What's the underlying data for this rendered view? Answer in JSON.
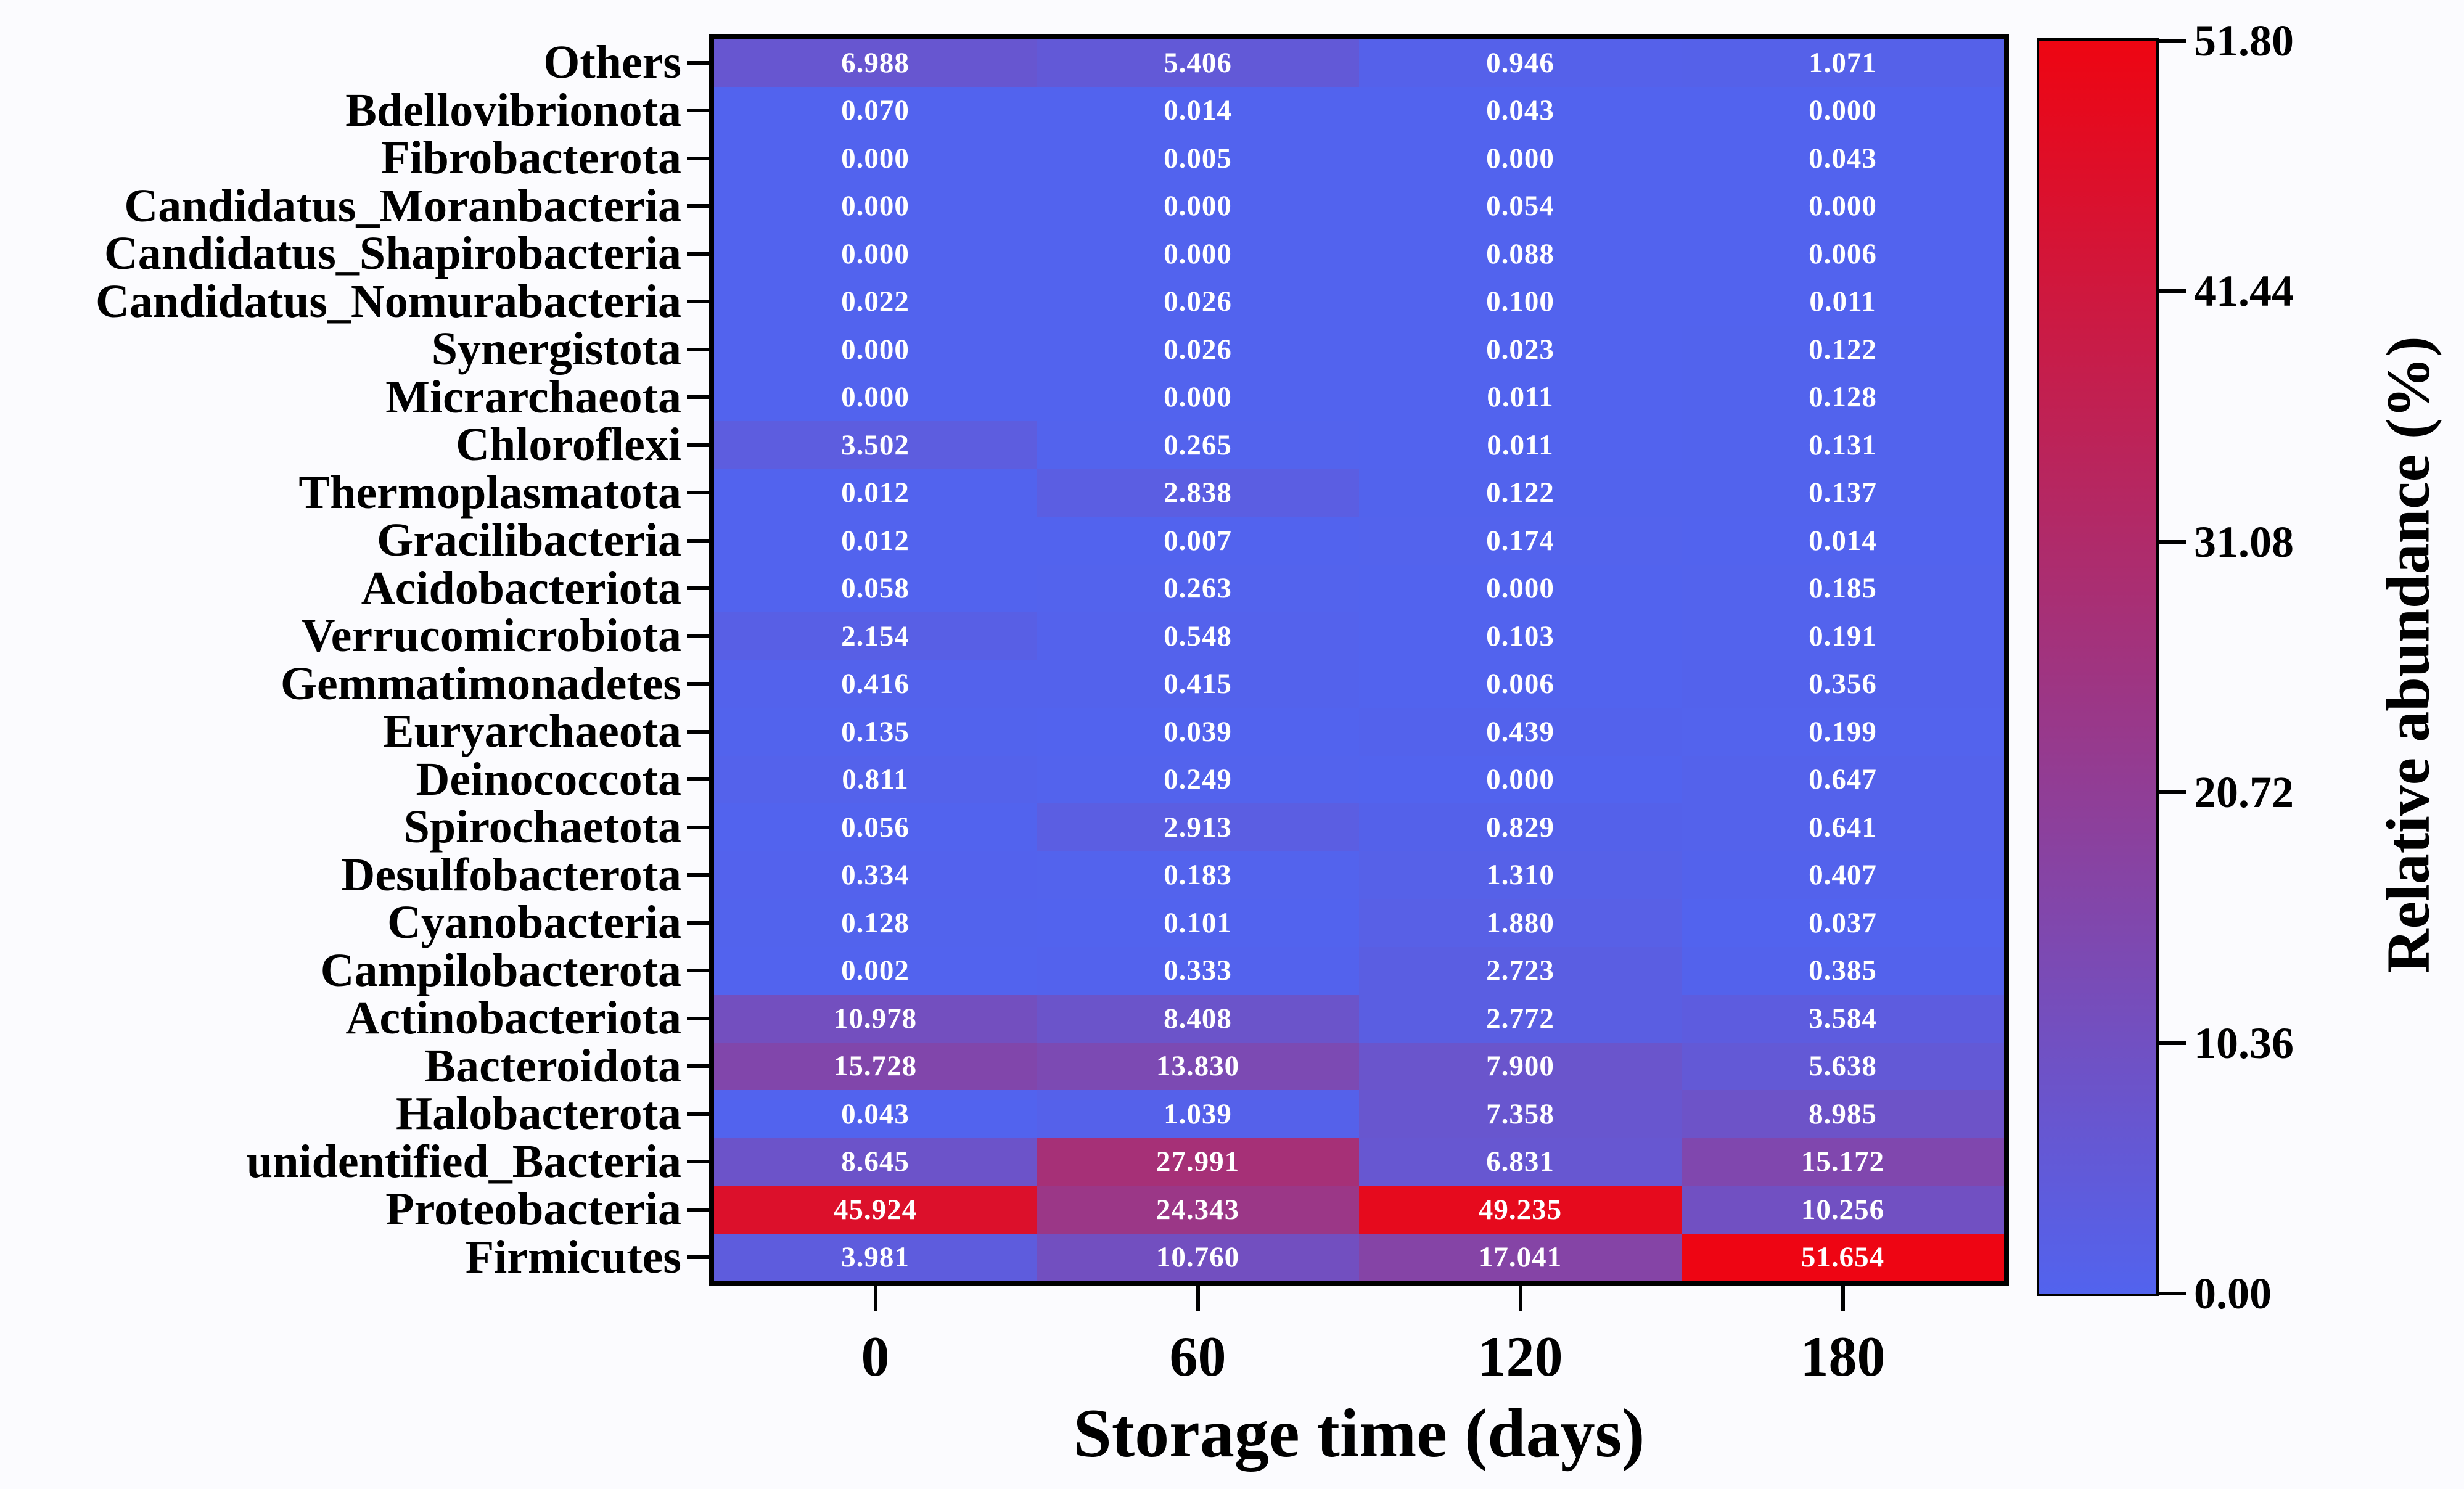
{
  "chart_data": {
    "type": "heatmap",
    "title": "",
    "xlabel": "Storage time (days)",
    "ylabel": "",
    "colorbar_label": "Relative abundance (%)",
    "x_categories": [
      "0",
      "60",
      "120",
      "180"
    ],
    "rows": [
      "Others",
      "Bdellovibrionota",
      "Fibrobacterota",
      "Candidatus_Moranbacteria",
      "Candidatus_Shapirobacteria",
      "Candidatus_Nomurabacteria",
      "Synergistota",
      "Micrarchaeota",
      "Chloroflexi",
      "Thermoplasmatota",
      "Gracilibacteria",
      "Acidobacteriota",
      "Verrucomicrobiota",
      "Gemmatimonadetes",
      "Euryarchaeota",
      "Deinococcota",
      "Spirochaetota",
      "Desulfobacterota",
      "Cyanobacteria",
      "Campilobacterota",
      "Actinobacteriota",
      "Bacteroidota",
      "Halobacterota",
      "unidentified_Bacteria",
      "Proteobacteria",
      "Firmicutes"
    ],
    "values": [
      [
        "6.988",
        "5.406",
        "0.946",
        "1.071"
      ],
      [
        "0.070",
        "0.014",
        "0.043",
        "0.000"
      ],
      [
        "0.000",
        "0.005",
        "0.000",
        "0.043"
      ],
      [
        "0.000",
        "0.000",
        "0.054",
        "0.000"
      ],
      [
        "0.000",
        "0.000",
        "0.088",
        "0.006"
      ],
      [
        "0.022",
        "0.026",
        "0.100",
        "0.011"
      ],
      [
        "0.000",
        "0.026",
        "0.023",
        "0.122"
      ],
      [
        "0.000",
        "0.000",
        "0.011",
        "0.128"
      ],
      [
        "3.502",
        "0.265",
        "0.011",
        "0.131"
      ],
      [
        "0.012",
        "2.838",
        "0.122",
        "0.137"
      ],
      [
        "0.012",
        "0.007",
        "0.174",
        "0.014"
      ],
      [
        "0.058",
        "0.263",
        "0.000",
        "0.185"
      ],
      [
        "2.154",
        "0.548",
        "0.103",
        "0.191"
      ],
      [
        "0.416",
        "0.415",
        "0.006",
        "0.356"
      ],
      [
        "0.135",
        "0.039",
        "0.439",
        "0.199"
      ],
      [
        "0.811",
        "0.249",
        "0.000",
        "0.647"
      ],
      [
        "0.056",
        "2.913",
        "0.829",
        "0.641"
      ],
      [
        "0.334",
        "0.183",
        "1.310",
        "0.407"
      ],
      [
        "0.128",
        "0.101",
        "1.880",
        "0.037"
      ],
      [
        "0.002",
        "0.333",
        "2.723",
        "0.385"
      ],
      [
        "10.978",
        "8.408",
        "2.772",
        "3.584"
      ],
      [
        "15.728",
        "13.830",
        "7.900",
        "5.638"
      ],
      [
        "0.043",
        "1.039",
        "7.358",
        "8.985"
      ],
      [
        "8.645",
        "27.991",
        "6.831",
        "15.172"
      ],
      [
        "45.924",
        "24.343",
        "49.235",
        "10.256"
      ],
      [
        "3.981",
        "10.760",
        "17.041",
        "51.654"
      ]
    ],
    "colorbar": {
      "min": 0.0,
      "max": 51.8,
      "ticks": [
        "51.80",
        "41.44",
        "31.08",
        "20.72",
        "10.36",
        "0.00"
      ],
      "low_color": "#5263EE",
      "high_color": "#EE0512"
    },
    "cell_text_color": "#FFFFFF",
    "axis_text_color": "#000000",
    "grid": false,
    "legend_position": "right"
  }
}
